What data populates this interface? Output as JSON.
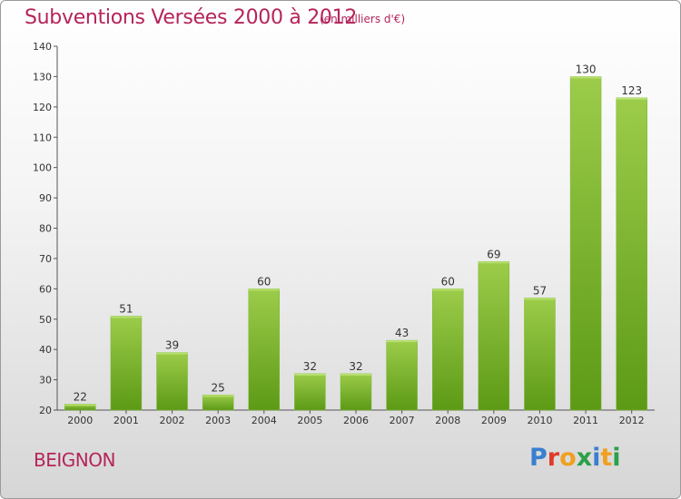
{
  "header": {
    "title": "Subventions Versées 2000 à 2012",
    "subtitle": "(en milliers d'€)"
  },
  "footer": {
    "place": "BEIGNON",
    "logo": "Proxiti",
    "logo_colors": [
      "#3a7fd0",
      "#e03a2a",
      "#f0a020",
      "#2aa04a",
      "#3a7fd0",
      "#f0a020",
      "#2aa04a"
    ]
  },
  "chart_data": {
    "type": "bar",
    "title": "Subventions Versées 2000 à 2012",
    "subtitle": "(en milliers d'€)",
    "xlabel": "",
    "ylabel": "",
    "categories": [
      "2000",
      "2001",
      "2002",
      "2003",
      "2004",
      "2005",
      "2006",
      "2007",
      "2008",
      "2009",
      "2010",
      "2011",
      "2012"
    ],
    "values": [
      22,
      51,
      39,
      25,
      60,
      32,
      32,
      43,
      60,
      69,
      57,
      130,
      123
    ],
    "ylim": [
      20,
      140
    ],
    "yticks": [
      20,
      30,
      40,
      50,
      60,
      70,
      80,
      90,
      100,
      110,
      120,
      130,
      140
    ],
    "grid": false,
    "data_labels": true,
    "bar_color_top": "#9ccc4a",
    "bar_color_bottom": "#5c9a16"
  }
}
